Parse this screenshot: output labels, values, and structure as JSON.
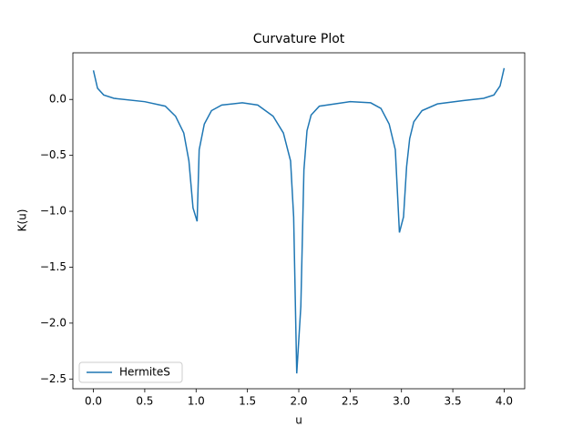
{
  "chart_data": {
    "type": "line",
    "title": "Curvature Plot",
    "xlabel": "u",
    "ylabel": "K(u)",
    "x": [
      0.0,
      0.04,
      0.1,
      0.2,
      0.5,
      0.7,
      0.8,
      0.88,
      0.93,
      0.97,
      1.01,
      1.03,
      1.08,
      1.15,
      1.25,
      1.45,
      1.6,
      1.75,
      1.85,
      1.92,
      1.95,
      1.98,
      2.02,
      2.05,
      2.08,
      2.12,
      2.2,
      2.5,
      2.7,
      2.8,
      2.88,
      2.94,
      2.98,
      3.02,
      3.05,
      3.08,
      3.12,
      3.2,
      3.35,
      3.6,
      3.8,
      3.9,
      3.96,
      4.0
    ],
    "series": [
      {
        "name": "HermiteS",
        "color": "#1f77b4",
        "values": [
          0.26,
          0.1,
          0.04,
          0.01,
          -0.02,
          -0.06,
          -0.15,
          -0.3,
          -0.55,
          -0.97,
          -1.09,
          -0.45,
          -0.22,
          -0.1,
          -0.05,
          -0.03,
          -0.05,
          -0.15,
          -0.3,
          -0.55,
          -1.05,
          -2.45,
          -1.85,
          -0.63,
          -0.28,
          -0.14,
          -0.06,
          -0.02,
          -0.03,
          -0.08,
          -0.22,
          -0.45,
          -1.19,
          -1.05,
          -0.6,
          -0.35,
          -0.2,
          -0.1,
          -0.04,
          -0.01,
          0.01,
          0.04,
          0.12,
          0.28
        ]
      }
    ],
    "xlim": [
      -0.2,
      4.2
    ],
    "xticks": [
      {
        "value": 0,
        "label": "0.0"
      },
      {
        "value": 0.5,
        "label": "0.5"
      },
      {
        "value": 1,
        "label": "1.0"
      },
      {
        "value": 1.5,
        "label": "1.5"
      },
      {
        "value": 2,
        "label": "2.0"
      },
      {
        "value": 2.5,
        "label": "2.5"
      },
      {
        "value": 3,
        "label": "3.0"
      },
      {
        "value": 3.5,
        "label": "3.5"
      },
      {
        "value": 4,
        "label": "4.0"
      }
    ],
    "ylim": [
      -2.587,
      0.417
    ],
    "yticks": [
      {
        "value": -2.5,
        "label": "−2.5"
      },
      {
        "value": -2,
        "label": "−2.0"
      },
      {
        "value": -1.5,
        "label": "−1.5"
      },
      {
        "value": -1,
        "label": "−1.0"
      },
      {
        "value": -0.5,
        "label": "−0.5"
      },
      {
        "value": 0,
        "label": "0.0"
      }
    ],
    "legend": "lower left"
  }
}
